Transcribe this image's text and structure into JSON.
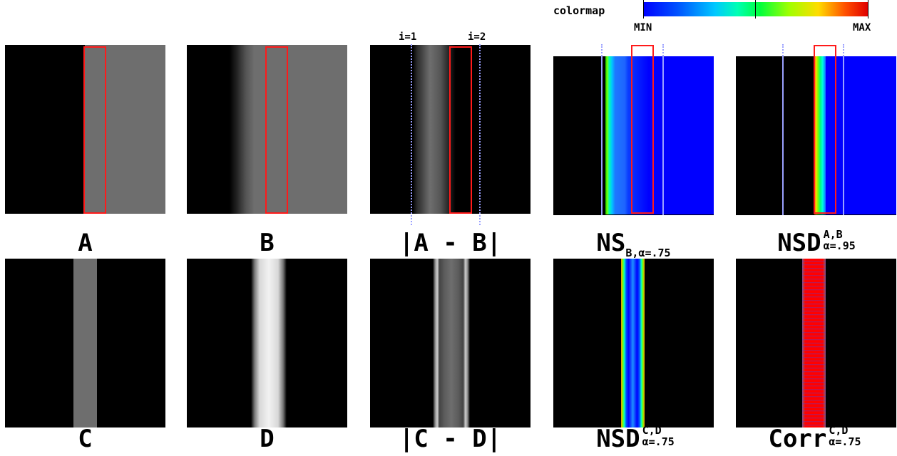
{
  "colormap": {
    "label": "colormap",
    "min_label": "MIN",
    "max_label": "MAX"
  },
  "markers": {
    "i1": "i=1",
    "i2": "i=2"
  },
  "row1": {
    "A": {
      "label": "A"
    },
    "B": {
      "label": "B"
    },
    "AB": {
      "label": "|A - B|"
    },
    "NS": {
      "main": "NS",
      "sub": "B,α=.75"
    },
    "NSD": {
      "main": "NSD",
      "sup": "A,B",
      "sub": "α=.95"
    }
  },
  "row2": {
    "C": {
      "label": "C"
    },
    "D": {
      "label": "D"
    },
    "CD": {
      "label": "|C - D|"
    },
    "NSD": {
      "main": "NSD",
      "sup": "C,D",
      "sub": "α=.75"
    },
    "Corr": {
      "main": "Corr",
      "sup": "C,D",
      "sub": "α=.75"
    }
  },
  "colors": {
    "highlight_box": "#ff1a1a",
    "gray": "#6e6e6e",
    "marker_line": "#9aa0ff",
    "jet_min": "#0000ff",
    "jet_max": "#e00000"
  }
}
